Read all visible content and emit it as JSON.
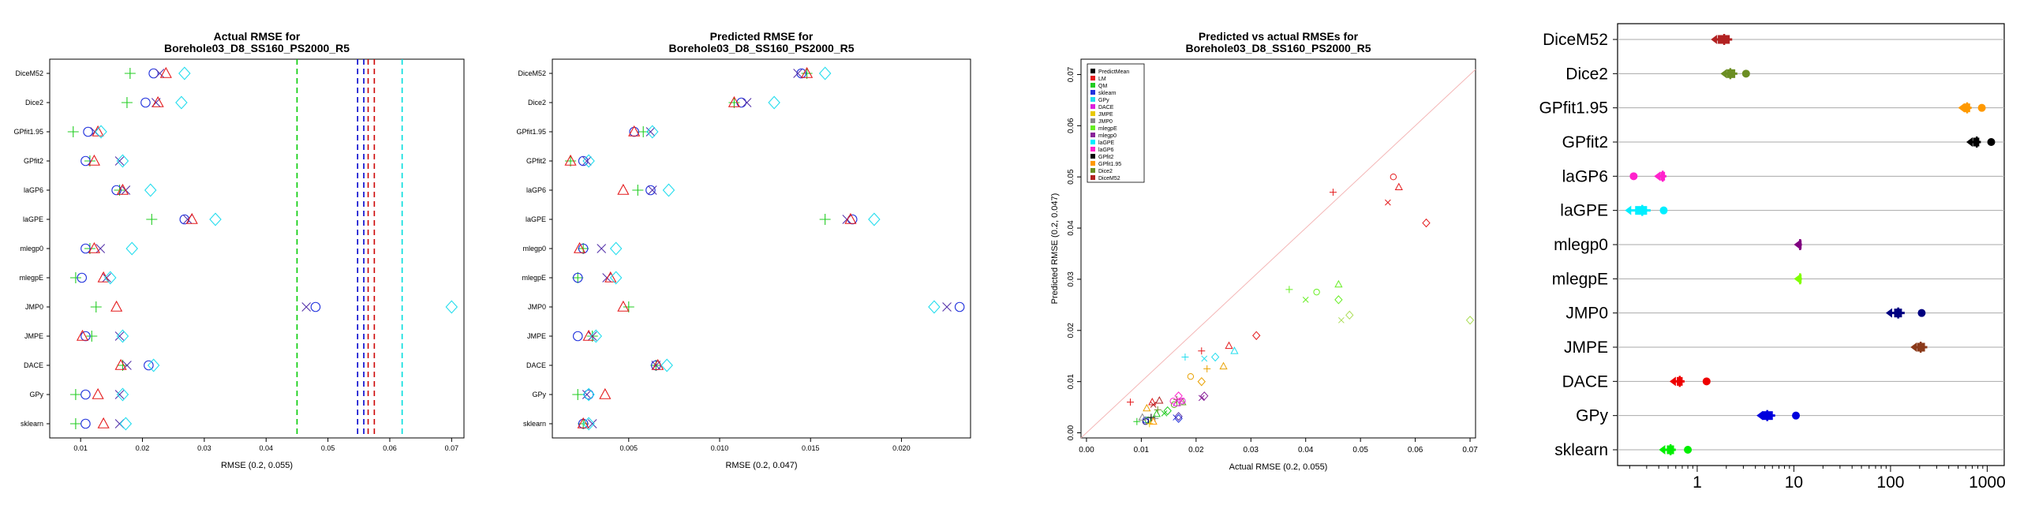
{
  "colors": {
    "PredictMean": "#000000",
    "LM": "#e41a1c",
    "QM": "#22cc22",
    "sklearn": "#2233dd",
    "GPy": "#22ddee",
    "DACE": "#dd22dd",
    "JMPE": "#e8c800",
    "JMP0": "#888888",
    "mlegpE": "#66ee22",
    "mlegp0": "#882299",
    "laGPE": "#00eeff",
    "laGP6": "#ff22cc",
    "GPfit2": "#000000",
    "GPfit1.95": "#ff9900",
    "Dice2": "#6b8e23",
    "DiceM52": "#b22222",
    "JMPE_box": "#8b3a1a",
    "JMP0_box": "#000080",
    "mlegpE_box": "#80ff00",
    "mlegp0_box": "#800080",
    "GPy_box": "#0000dd",
    "DACE_box": "#ee0000",
    "sklearn_box": "#00ee00",
    "dashed_green": "#00cc00",
    "dashed_blue": "#0000cc",
    "dashed_red": "#cc0000",
    "dashed_cyan": "#00dddd"
  },
  "chart_data": [
    {
      "type": "scatter",
      "title": "Actual RMSE for",
      "subtitle": "Borehole03_D8_SS160_PS2000_R5",
      "xlabel": "RMSE (0.2, 0.055)",
      "ylabel": "",
      "xlim": [
        0.005,
        0.072
      ],
      "xticks": [
        "0.01",
        "0.02",
        "0.03",
        "0.04",
        "0.05",
        "0.06",
        "0.07"
      ],
      "xtick_values": [
        0.01,
        0.02,
        0.03,
        0.04,
        0.05,
        0.06,
        0.07
      ],
      "categories": [
        "DiceM52",
        "Dice2",
        "GPfit1.95",
        "GPfit2",
        "laGP6",
        "laGPE",
        "mlegp0",
        "mlegpE",
        "JMP0",
        "JMPE",
        "DACE",
        "GPy",
        "sklearn"
      ],
      "series": [
        {
          "marker": "plus",
          "color": "#22cc22",
          "values": [
            0.018,
            0.0175,
            0.0088,
            0.0115,
            0.0163,
            0.0215,
            0.0115,
            0.0092,
            0.0125,
            0.0118,
            0.0168,
            0.0092,
            0.0092
          ]
        },
        {
          "marker": "circle",
          "color": "#2233dd",
          "values": [
            0.0218,
            0.0205,
            0.0112,
            0.0108,
            0.0158,
            0.0268,
            0.0108,
            0.0102,
            0.048,
            0.0108,
            0.021,
            0.0108,
            0.0108
          ]
        },
        {
          "marker": "x",
          "color": "#5533aa",
          "values": [
            0.0228,
            0.0222,
            0.0123,
            0.0163,
            0.0173,
            0.0273,
            0.0132,
            0.0142,
            0.0465,
            0.0163,
            0.0175,
            0.0163,
            0.0163
          ]
        },
        {
          "marker": "triangle",
          "color": "#e41a1c",
          "values": [
            0.0238,
            0.0225,
            0.0128,
            0.0122,
            0.0168,
            0.028,
            0.0122,
            0.0137,
            0.0158,
            0.0103,
            0.0165,
            0.0128,
            0.0137
          ]
        },
        {
          "marker": "diamond",
          "color": "#22ddee",
          "values": [
            0.0268,
            0.0263,
            0.0133,
            0.0168,
            0.0213,
            0.0318,
            0.0183,
            0.0148,
            0.07,
            0.0168,
            0.0218,
            0.0168,
            0.0173
          ]
        }
      ],
      "vlines": [
        {
          "x": 0.045,
          "color": "#00cc00"
        },
        {
          "x": 0.0548,
          "color": "#0000cc"
        },
        {
          "x": 0.0558,
          "color": "#0000cc"
        },
        {
          "x": 0.0565,
          "color": "#cc0000"
        },
        {
          "x": 0.0575,
          "color": "#cc0000"
        },
        {
          "x": 0.062,
          "color": "#00dddd"
        }
      ]
    },
    {
      "type": "scatter",
      "title": "Predicted RMSE for",
      "subtitle": "Borehole03_D8_SS160_PS2000_R5",
      "xlabel": "RMSE (0.2, 0.047)",
      "ylabel": "",
      "xlim": [
        0.0008,
        0.0238
      ],
      "xticks": [
        "0.005",
        "0.010",
        "0.015",
        "0.020"
      ],
      "xtick_values": [
        0.005,
        0.01,
        0.015,
        0.02
      ],
      "categories": [
        "DiceM52",
        "Dice2",
        "GPfit1.95",
        "GPfit2",
        "laGP6",
        "laGPE",
        "mlegp0",
        "mlegpE",
        "JMP0",
        "JMPE",
        "DACE",
        "GPy",
        "sklearn"
      ],
      "series": [
        {
          "marker": "plus",
          "color": "#22cc22",
          "values": [
            0.0148,
            0.0108,
            0.0058,
            0.0018,
            0.0055,
            0.0158,
            0.0025,
            0.0022,
            0.005,
            0.003,
            0.0065,
            0.0022,
            0.0025
          ]
        },
        {
          "marker": "circle",
          "color": "#2233dd",
          "values": [
            0.0145,
            0.0112,
            0.0053,
            0.0025,
            0.0062,
            0.0173,
            0.0025,
            0.0022,
            0.0232,
            0.0022,
            0.0065,
            0.0028,
            0.0025
          ]
        },
        {
          "marker": "x",
          "color": "#5533aa",
          "values": [
            0.0143,
            0.0115,
            0.0062,
            0.0027,
            0.0063,
            0.017,
            0.0035,
            0.0038,
            0.0225,
            0.003,
            0.0065,
            0.0027,
            0.003
          ]
        },
        {
          "marker": "triangle",
          "color": "#e41a1c",
          "values": [
            0.0148,
            0.0108,
            0.0053,
            0.0018,
            0.0047,
            0.0172,
            0.0023,
            0.004,
            0.0047,
            0.0028,
            0.0066,
            0.0037,
            0.0025
          ]
        },
        {
          "marker": "diamond",
          "color": "#22ddee",
          "values": [
            0.0158,
            0.013,
            0.0063,
            0.0028,
            0.0072,
            0.0185,
            0.0043,
            0.0043,
            0.0218,
            0.0032,
            0.0071,
            0.0028,
            0.0028
          ]
        }
      ]
    },
    {
      "type": "scatter",
      "title": "Predicted vs actual RMSEs for",
      "subtitle": "Borehole03_D8_SS160_PS2000_R5",
      "xlabel": "Actual RMSE (0.2, 0.055)",
      "ylabel": "Predicted RMSE (0.2, 0.047)",
      "xlim": [
        -0.001,
        0.071
      ],
      "ylim": [
        -0.001,
        0.073
      ],
      "xticks": [
        "0.00",
        "0.01",
        "0.02",
        "0.03",
        "0.04",
        "0.05",
        "0.06",
        "0.07"
      ],
      "xtick_values": [
        0,
        0.01,
        0.02,
        0.03,
        0.04,
        0.05,
        0.06,
        0.07
      ],
      "yticks": [
        "0.00",
        "0.01",
        "0.02",
        "0.03",
        "0.04",
        "0.05",
        "0.06",
        "0.07"
      ],
      "ytick_values": [
        0,
        0.01,
        0.02,
        0.03,
        0.04,
        0.05,
        0.06,
        0.07
      ],
      "legend": {
        "position": "top-left",
        "entries": [
          "PredictMean",
          "LM",
          "QM",
          "sklearn",
          "GPy",
          "DACE",
          "JMPE",
          "JMP0",
          "mlegpE",
          "mlegp0",
          "laGPE",
          "laGP6",
          "GPfit2",
          "GPfit1.95",
          "Dice2",
          "DiceM52"
        ]
      },
      "reference_line": true,
      "points": [
        {
          "x": 0.008,
          "y": 0.006,
          "m": "plus",
          "c": "#e41a1c"
        },
        {
          "x": 0.021,
          "y": 0.016,
          "m": "plus",
          "c": "#e41a1c"
        },
        {
          "x": 0.045,
          "y": 0.047,
          "m": "plus",
          "c": "#e41a1c"
        },
        {
          "x": 0.056,
          "y": 0.05,
          "m": "circle",
          "c": "#e41a1c"
        },
        {
          "x": 0.057,
          "y": 0.048,
          "m": "triangle",
          "c": "#e41a1c"
        },
        {
          "x": 0.055,
          "y": 0.045,
          "m": "x",
          "c": "#e41a1c"
        },
        {
          "x": 0.062,
          "y": 0.041,
          "m": "diamond",
          "c": "#e41a1c"
        },
        {
          "x": 0.031,
          "y": 0.019,
          "m": "diamond",
          "c": "#e41a1c"
        },
        {
          "x": 0.026,
          "y": 0.017,
          "m": "triangle",
          "c": "#e41a1c"
        },
        {
          "x": 0.012,
          "y": 0.006,
          "m": "triangle",
          "c": "#e41a1c"
        },
        {
          "x": 0.037,
          "y": 0.028,
          "m": "plus",
          "c": "#66ee22"
        },
        {
          "x": 0.04,
          "y": 0.026,
          "m": "x",
          "c": "#66ee22"
        },
        {
          "x": 0.042,
          "y": 0.0275,
          "m": "circle",
          "c": "#66ee22"
        },
        {
          "x": 0.046,
          "y": 0.029,
          "m": "triangle",
          "c": "#66ee22"
        },
        {
          "x": 0.046,
          "y": 0.026,
          "m": "diamond",
          "c": "#66ee22"
        },
        {
          "x": 0.048,
          "y": 0.023,
          "m": "diamond",
          "c": "#aadd55"
        },
        {
          "x": 0.0465,
          "y": 0.022,
          "m": "x",
          "c": "#aadd55"
        },
        {
          "x": 0.07,
          "y": 0.022,
          "m": "diamond",
          "c": "#aadd55"
        },
        {
          "x": 0.018,
          "y": 0.0148,
          "m": "plus",
          "c": "#22ddee"
        },
        {
          "x": 0.0215,
          "y": 0.0145,
          "m": "x",
          "c": "#22ddee"
        },
        {
          "x": 0.0235,
          "y": 0.0148,
          "m": "diamond",
          "c": "#22ddee"
        },
        {
          "x": 0.027,
          "y": 0.016,
          "m": "triangle",
          "c": "#22ddee"
        },
        {
          "x": 0.022,
          "y": 0.0125,
          "m": "plus",
          "c": "#e8a000"
        },
        {
          "x": 0.019,
          "y": 0.011,
          "m": "circle",
          "c": "#e8a000"
        },
        {
          "x": 0.025,
          "y": 0.013,
          "m": "triangle",
          "c": "#e8a000"
        },
        {
          "x": 0.021,
          "y": 0.01,
          "m": "diamond",
          "c": "#e8a000"
        },
        {
          "x": 0.011,
          "y": 0.0048,
          "m": "triangle",
          "c": "#e8a000"
        },
        {
          "x": 0.0165,
          "y": 0.0065,
          "m": "plus",
          "c": "#66aa22"
        },
        {
          "x": 0.016,
          "y": 0.0055,
          "m": "circle",
          "c": "#66aa22"
        },
        {
          "x": 0.0175,
          "y": 0.006,
          "m": "triangle",
          "c": "#66aa22"
        },
        {
          "x": 0.0215,
          "y": 0.0072,
          "m": "diamond",
          "c": "#882299"
        },
        {
          "x": 0.021,
          "y": 0.0068,
          "m": "x",
          "c": "#882299"
        },
        {
          "x": 0.0175,
          "y": 0.0062,
          "m": "circle",
          "c": "#dd22dd"
        },
        {
          "x": 0.0165,
          "y": 0.0058,
          "m": "triangle",
          "c": "#dd22dd"
        },
        {
          "x": 0.0108,
          "y": 0.0025,
          "m": "circle",
          "c": "#2233dd"
        },
        {
          "x": 0.0163,
          "y": 0.003,
          "m": "x",
          "c": "#2233dd"
        },
        {
          "x": 0.0168,
          "y": 0.0028,
          "m": "diamond",
          "c": "#2233dd"
        },
        {
          "x": 0.0092,
          "y": 0.0022,
          "m": "plus",
          "c": "#22cc22"
        },
        {
          "x": 0.0112,
          "y": 0.0025,
          "m": "circle",
          "c": "#22cc22"
        },
        {
          "x": 0.0142,
          "y": 0.0038,
          "m": "x",
          "c": "#22cc22"
        },
        {
          "x": 0.0128,
          "y": 0.0037,
          "m": "triangle",
          "c": "#22cc22"
        },
        {
          "x": 0.0148,
          "y": 0.0043,
          "m": "diamond",
          "c": "#22cc22"
        },
        {
          "x": 0.0108,
          "y": 0.0022,
          "m": "circle",
          "c": "#000080"
        },
        {
          "x": 0.0125,
          "y": 0.0028,
          "m": "plus",
          "c": "#888888"
        },
        {
          "x": 0.0102,
          "y": 0.003,
          "m": "triangle",
          "c": "#888888"
        },
        {
          "x": 0.0118,
          "y": 0.003,
          "m": "plus",
          "c": "#000000"
        },
        {
          "x": 0.0115,
          "y": 0.0018,
          "m": "plus",
          "c": "#e8c800"
        },
        {
          "x": 0.0133,
          "y": 0.0063,
          "m": "triangle",
          "c": "#b22222"
        },
        {
          "x": 0.0122,
          "y": 0.0055,
          "m": "x",
          "c": "#b22222"
        },
        {
          "x": 0.0168,
          "y": 0.0072,
          "m": "diamond",
          "c": "#ff22cc"
        },
        {
          "x": 0.0158,
          "y": 0.0062,
          "m": "circle",
          "c": "#ff22cc"
        },
        {
          "x": 0.0173,
          "y": 0.0063,
          "m": "x",
          "c": "#ff22cc"
        },
        {
          "x": 0.0122,
          "y": 0.0022,
          "m": "triangle",
          "c": "#ff9900"
        },
        {
          "x": 0.0168,
          "y": 0.0032,
          "m": "diamond",
          "c": "#5533aa"
        },
        {
          "x": 0.013,
          "y": 0.0045,
          "m": "plus",
          "c": "#6b8e23"
        }
      ]
    },
    {
      "type": "boxplot",
      "title": "",
      "xlabel": "",
      "xscale": "log",
      "xlim": [
        0.15,
        1500
      ],
      "xticks": [
        "1",
        "10",
        "100",
        "1000"
      ],
      "xtick_values": [
        1,
        10,
        100,
        1000
      ],
      "grid": true,
      "categories": [
        "DiceM52",
        "Dice2",
        "GPfit1.95",
        "GPfit2",
        "laGP6",
        "laGPE",
        "mlegp0",
        "mlegpE",
        "JMP0",
        "JMPE",
        "DACE",
        "GPy",
        "sklearn"
      ],
      "boxes": [
        {
          "min": 1.55,
          "q1": 1.65,
          "median": 1.9,
          "q3": 2.15,
          "max": 2.3,
          "outliers": [],
          "color": "#b22222"
        },
        {
          "min": 1.95,
          "q1": 2.05,
          "median": 2.2,
          "q3": 2.45,
          "max": 2.6,
          "outliers": [
            3.2
          ],
          "color": "#6b8e23"
        },
        {
          "min": 560,
          "q1": 580,
          "median": 620,
          "q3": 660,
          "max": 690,
          "outliers": [
            880
          ],
          "color": "#ff9900"
        },
        {
          "min": 680,
          "q1": 720,
          "median": 780,
          "q3": 820,
          "max": 860,
          "outliers": [
            1100
          ],
          "color": "#000000"
        },
        {
          "min": 0.4,
          "q1": 0.42,
          "median": 0.44,
          "q3": 0.46,
          "max": 0.48,
          "outliers": [
            0.22
          ],
          "color": "#ff22cc"
        },
        {
          "min": 0.2,
          "q1": 0.23,
          "median": 0.27,
          "q3": 0.3,
          "max": 0.33,
          "outliers": [
            0.45
          ],
          "color": "#00eeff"
        },
        {
          "min": 11.2,
          "q1": 11.4,
          "median": 11.6,
          "q3": 11.9,
          "max": 12.1,
          "outliers": [],
          "color": "#800080"
        },
        {
          "min": 11.2,
          "q1": 11.4,
          "median": 11.6,
          "q3": 11.9,
          "max": 12.1,
          "outliers": [],
          "color": "#80ff00"
        },
        {
          "min": 100,
          "q1": 110,
          "median": 120,
          "q3": 130,
          "max": 140,
          "outliers": [
            210
          ],
          "color": "#000080"
        },
        {
          "min": 180,
          "q1": 190,
          "median": 205,
          "q3": 225,
          "max": 240,
          "outliers": [],
          "color": "#8b3a1a"
        },
        {
          "min": 0.58,
          "q1": 0.62,
          "median": 0.66,
          "q3": 0.7,
          "max": 0.74,
          "outliers": [
            1.25
          ],
          "color": "#ee0000"
        },
        {
          "min": 4.6,
          "q1": 4.8,
          "median": 5.3,
          "q3": 6.0,
          "max": 6.4,
          "outliers": [
            10.5
          ],
          "color": "#0000dd"
        },
        {
          "min": 0.45,
          "q1": 0.49,
          "median": 0.53,
          "q3": 0.57,
          "max": 0.6,
          "outliers": [
            0.8
          ],
          "color": "#00ee00"
        }
      ]
    }
  ]
}
